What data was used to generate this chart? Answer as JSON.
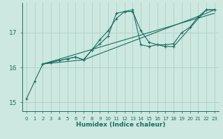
{
  "xlabel": "Humidex (Indice chaleur)",
  "ylabel": "",
  "background_color": "#cce8e0",
  "grid_color": "#aed0c8",
  "line_color": "#1a6e60",
  "xlim": [
    -0.5,
    23.5
  ],
  "ylim": [
    14.75,
    17.85
  ],
  "yticks": [
    15,
    16,
    17
  ],
  "xticks": [
    0,
    1,
    2,
    3,
    4,
    5,
    6,
    7,
    8,
    9,
    10,
    11,
    12,
    13,
    14,
    15,
    16,
    17,
    18,
    19,
    20,
    21,
    22,
    23
  ],
  "series": [
    {
      "x": [
        0,
        1,
        2,
        3,
        4,
        5,
        6,
        7,
        8,
        9,
        10,
        11,
        12,
        13,
        14,
        15,
        16,
        17,
        18,
        19,
        20,
        21,
        22,
        23
      ],
      "y": [
        15.1,
        15.6,
        16.1,
        16.15,
        16.2,
        16.25,
        16.3,
        16.22,
        16.5,
        16.8,
        17.05,
        17.4,
        17.6,
        17.6,
        17.05,
        16.72,
        16.65,
        16.65,
        16.68,
        17.0,
        17.15,
        17.45,
        17.65,
        17.65
      ],
      "marker": true
    },
    {
      "x": [
        2,
        3,
        4,
        5,
        6,
        7,
        8,
        9,
        10,
        11,
        12,
        13,
        14,
        15,
        16,
        17,
        18,
        22,
        23
      ],
      "y": [
        16.1,
        16.15,
        16.2,
        16.25,
        16.3,
        16.22,
        16.5,
        16.68,
        16.9,
        17.55,
        17.6,
        17.65,
        16.65,
        16.6,
        16.65,
        16.6,
        16.6,
        17.65,
        17.65
      ],
      "marker": true
    },
    {
      "x": [
        2,
        7,
        22,
        23
      ],
      "y": [
        16.1,
        16.22,
        17.55,
        17.65
      ],
      "marker": false
    },
    {
      "x": [
        2,
        23
      ],
      "y": [
        16.1,
        17.55
      ],
      "marker": false
    }
  ]
}
